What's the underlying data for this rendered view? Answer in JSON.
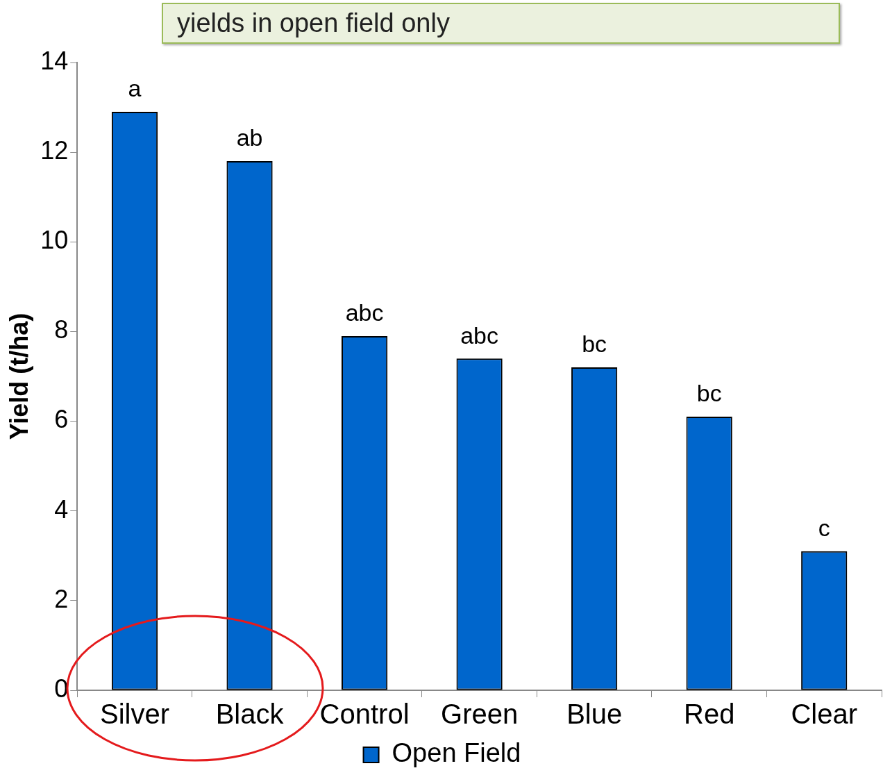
{
  "chart_data": {
    "type": "bar",
    "categories": [
      "Silver",
      "Black",
      "Control",
      "Green",
      "Blue",
      "Red",
      "Clear"
    ],
    "series": [
      {
        "name": "Open Field",
        "color": "#0066cc",
        "values": [
          12.9,
          11.8,
          7.9,
          7.4,
          7.2,
          6.1,
          3.1
        ]
      }
    ],
    "ylabel": "Yield (t/ha)",
    "ylim": [
      0,
      14
    ],
    "yticks": [
      0,
      2,
      4,
      6,
      8,
      10,
      12,
      14
    ],
    "grid": false,
    "legend": "bottom",
    "annotations": [
      "yields in open field only",
      {
        "text": "a",
        "x": "Silver",
        "y": 12.9
      },
      {
        "text": "ab",
        "x": "Black",
        "y": 11.8
      },
      {
        "text": "abc",
        "x": "Control",
        "y": 7.9
      },
      {
        "text": "abc",
        "x": "Green",
        "y": 7.4
      },
      {
        "text": "bc",
        "x": "Blue",
        "y": 7.2
      },
      {
        "text": "bc",
        "x": "Red",
        "y": 6.1
      },
      {
        "text": "c",
        "x": "Clear",
        "y": 3.1
      }
    ]
  }
}
